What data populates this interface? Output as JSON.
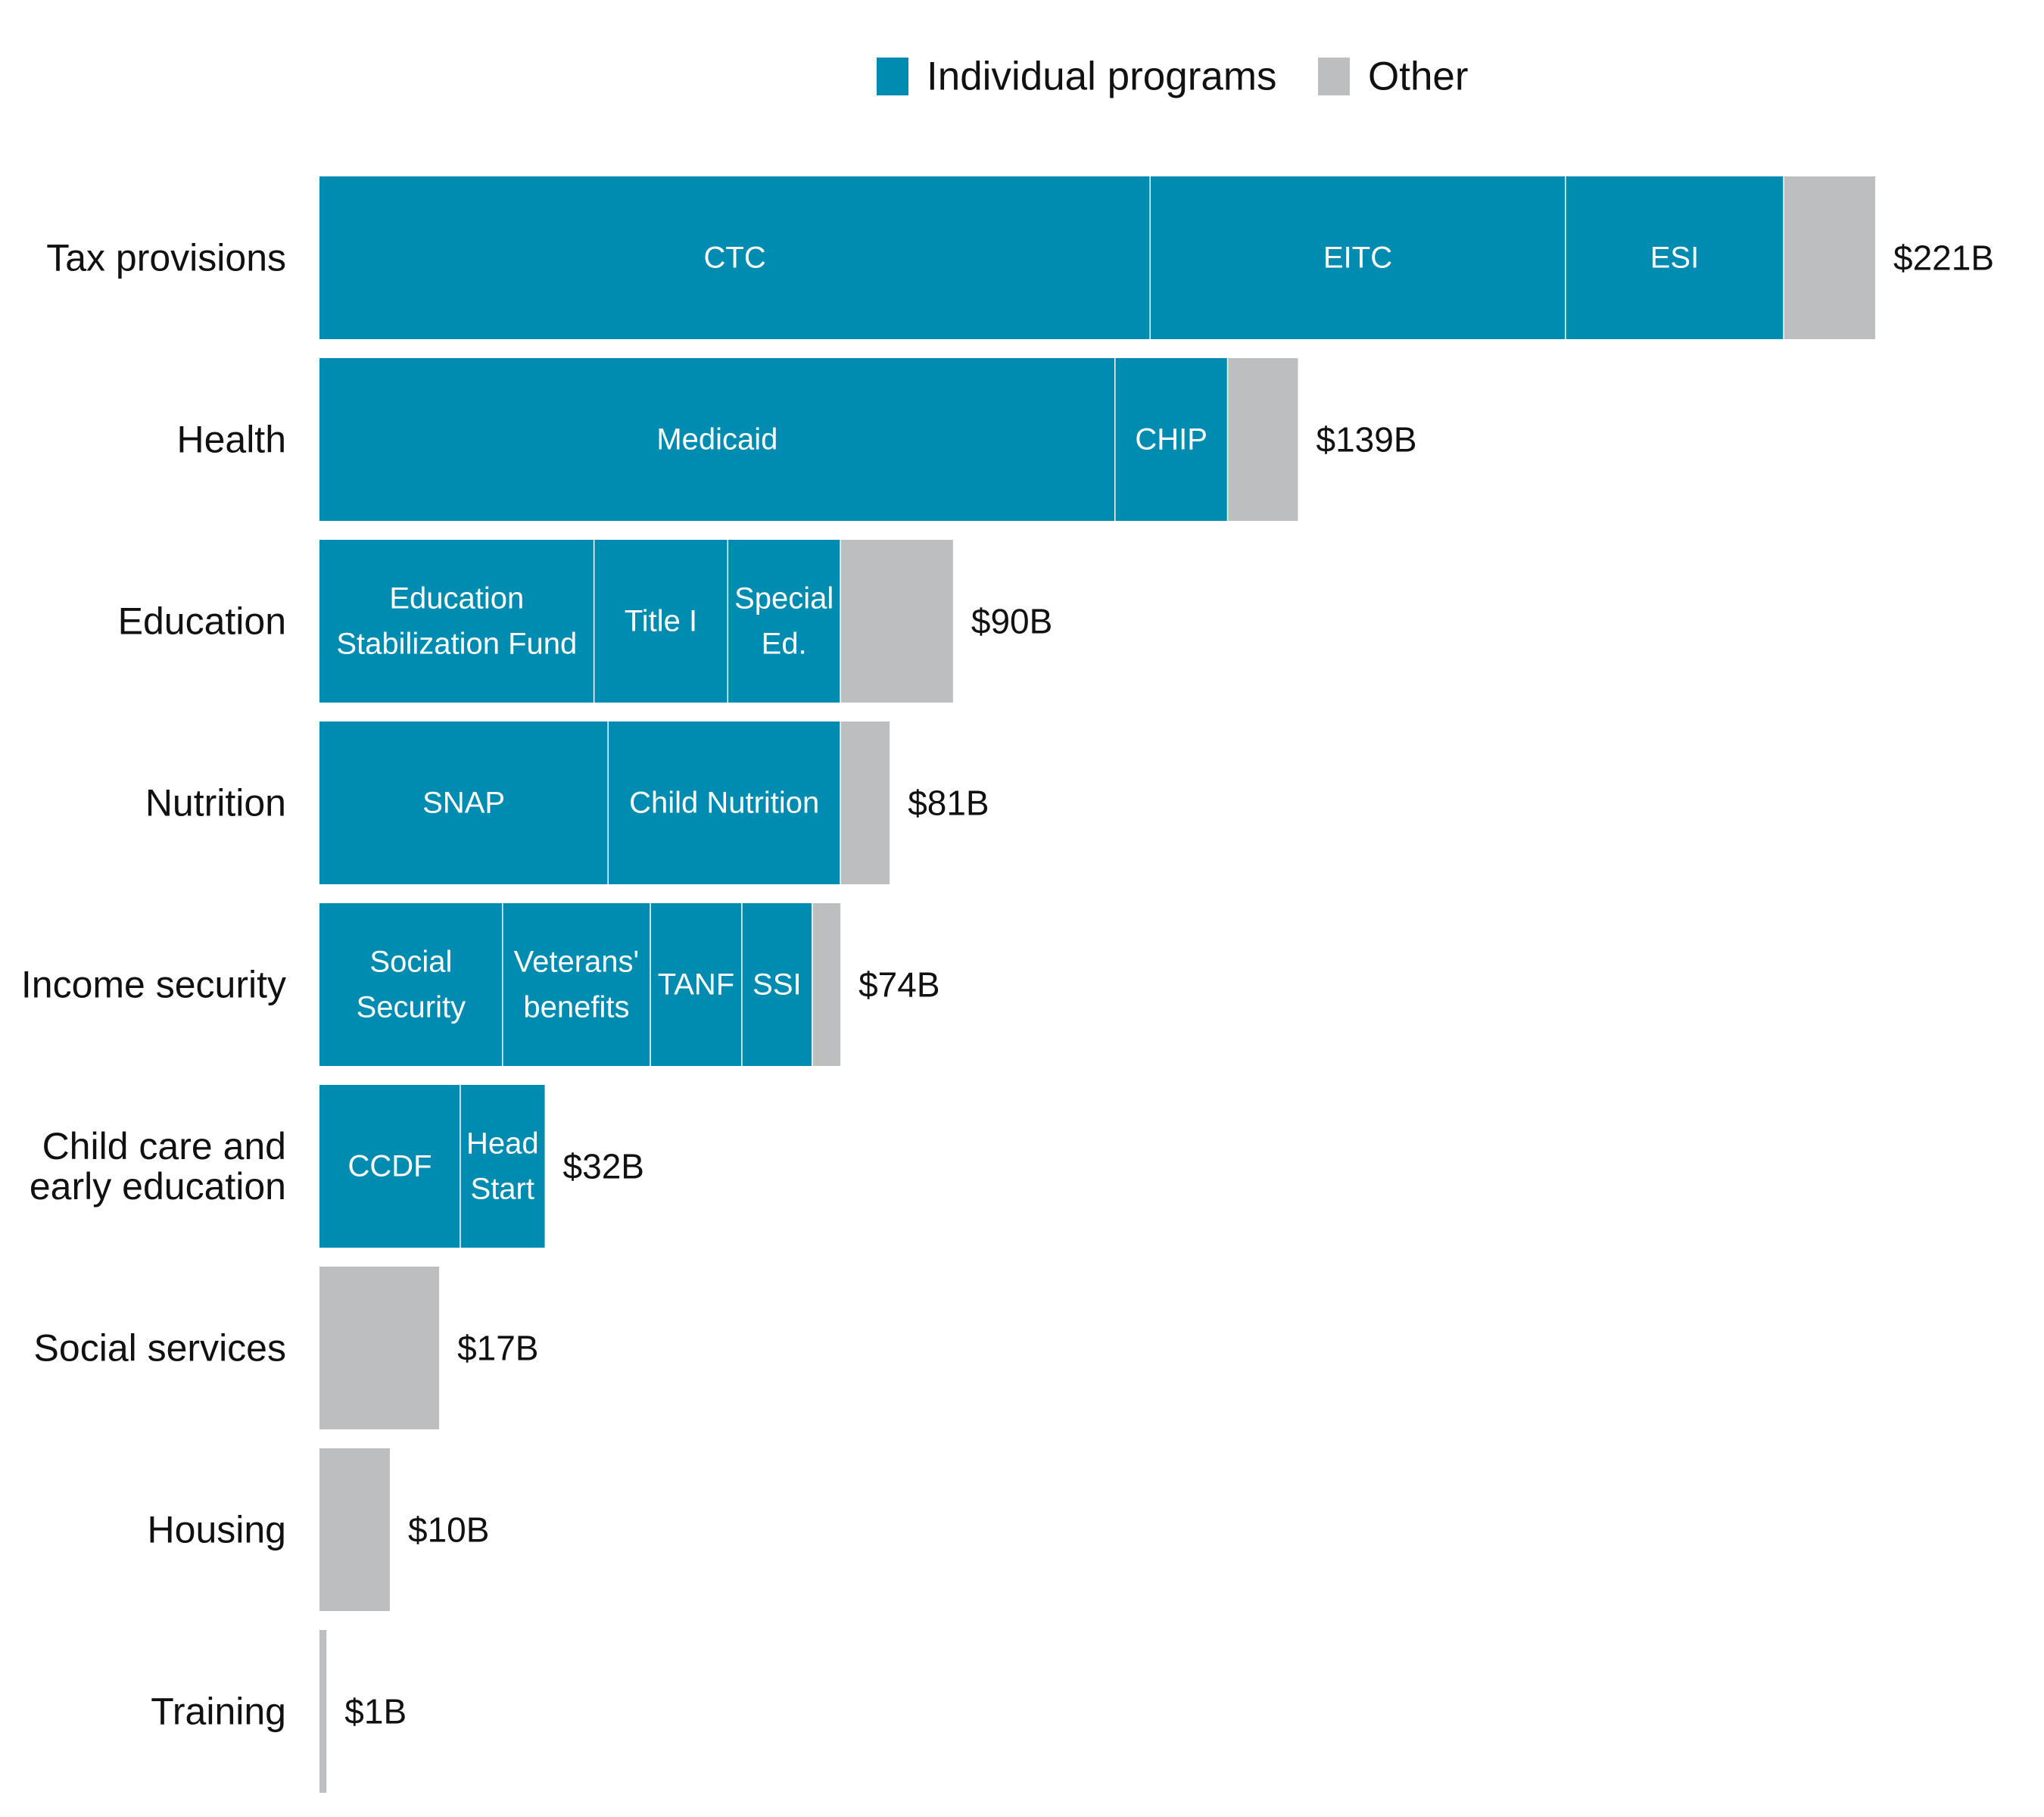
{
  "chart_data": {
    "type": "bar",
    "orientation": "horizontal",
    "stacked": true,
    "legend": {
      "placement": "top-right",
      "entries": [
        {
          "key": "programs",
          "label": "Individual programs",
          "color": "#008CB0"
        },
        {
          "key": "other",
          "label": "Other",
          "color": "#BDBEC0"
        }
      ]
    },
    "grid": false,
    "xlim": [
      0,
      221
    ],
    "categories": [
      {
        "label": [
          "Tax provisions"
        ],
        "total_label": "$221B",
        "total": 221,
        "segments": [
          {
            "name": [
              "CTC"
            ],
            "value": 118,
            "type": "programs"
          },
          {
            "name": [
              "EITC"
            ],
            "value": 59,
            "type": "programs"
          },
          {
            "name": [
              "ESI"
            ],
            "value": 31,
            "type": "programs"
          },
          {
            "name": [],
            "value": 13,
            "type": "other"
          }
        ]
      },
      {
        "label": [
          "Health"
        ],
        "total_label": "$139B",
        "total": 139,
        "segments": [
          {
            "name": [
              "Medicaid"
            ],
            "value": 113,
            "type": "programs"
          },
          {
            "name": [
              "CHIP"
            ],
            "value": 16,
            "type": "programs"
          },
          {
            "name": [],
            "value": 10,
            "type": "other"
          }
        ]
      },
      {
        "label": [
          "Education"
        ],
        "total_label": "$90B",
        "total": 90,
        "segments": [
          {
            "name": [
              "Education",
              "Stabilization Fund"
            ],
            "value": 39,
            "type": "programs"
          },
          {
            "name": [
              "Title I"
            ],
            "value": 19,
            "type": "programs"
          },
          {
            "name": [
              "Special",
              "Ed."
            ],
            "value": 16,
            "type": "programs"
          },
          {
            "name": [],
            "value": 16,
            "type": "other"
          }
        ]
      },
      {
        "label": [
          "Nutrition"
        ],
        "total_label": "$81B",
        "total": 81,
        "segments": [
          {
            "name": [
              "SNAP"
            ],
            "value": 41,
            "type": "programs"
          },
          {
            "name": [
              "Child Nutrition"
            ],
            "value": 33,
            "type": "programs"
          },
          {
            "name": [],
            "value": 7,
            "type": "other"
          }
        ]
      },
      {
        "label": [
          "Income security"
        ],
        "total_label": "$74B",
        "total": 74,
        "segments": [
          {
            "name": [
              "Social",
              "Security"
            ],
            "value": 26,
            "type": "programs"
          },
          {
            "name": [
              "Veterans'",
              "benefits"
            ],
            "value": 21,
            "type": "programs"
          },
          {
            "name": [
              "TANF"
            ],
            "value": 13,
            "type": "programs"
          },
          {
            "name": [
              "SSI"
            ],
            "value": 10,
            "type": "programs"
          },
          {
            "name": [],
            "value": 4,
            "type": "other"
          }
        ]
      },
      {
        "label": [
          "Child care and",
          "early education"
        ],
        "total_label": "$32B",
        "total": 32,
        "segments": [
          {
            "name": [
              "CCDF"
            ],
            "value": 20,
            "type": "programs"
          },
          {
            "name": [
              "Head",
              "Start"
            ],
            "value": 12,
            "type": "programs"
          }
        ]
      },
      {
        "label": [
          "Social services"
        ],
        "total_label": "$17B",
        "total": 17,
        "segments": [
          {
            "name": [],
            "value": 17,
            "type": "other"
          }
        ]
      },
      {
        "label": [
          "Housing"
        ],
        "total_label": "$10B",
        "total": 10,
        "segments": [
          {
            "name": [],
            "value": 10,
            "type": "other"
          }
        ]
      },
      {
        "label": [
          "Training"
        ],
        "total_label": "$1B",
        "total": 1,
        "segments": [
          {
            "name": [],
            "value": 1,
            "type": "other"
          }
        ]
      }
    ]
  }
}
